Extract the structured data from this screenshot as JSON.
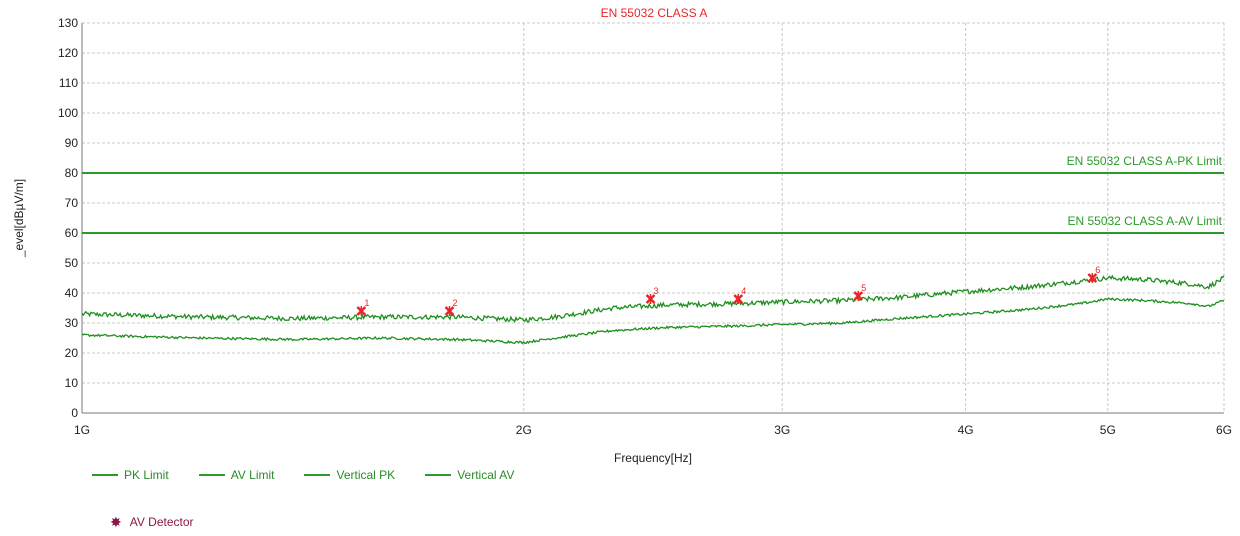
{
  "chart_data": {
    "type": "line",
    "title": "EN 55032 CLASS A",
    "xlabel": "Frequency[Hz]",
    "ylabel": "_evel[dBµV/m]",
    "x_scale": "log",
    "xlim": [
      1000000000,
      6000000000
    ],
    "ylim": [
      0,
      130
    ],
    "x_ticks": [
      {
        "value": 1000000000,
        "label": "1G"
      },
      {
        "value": 2000000000,
        "label": "2G"
      },
      {
        "value": 3000000000,
        "label": "3G"
      },
      {
        "value": 4000000000,
        "label": "4G"
      },
      {
        "value": 5000000000,
        "label": "5G"
      },
      {
        "value": 6000000000,
        "label": "6G"
      }
    ],
    "y_ticks": [
      0,
      10,
      20,
      30,
      40,
      50,
      60,
      70,
      80,
      90,
      100,
      110,
      120,
      130
    ],
    "grid": true,
    "limits": [
      {
        "name": "PK Limit",
        "value": 80,
        "label": "EN 55032 CLASS A-PK Limit",
        "color": "#2a9a2a"
      },
      {
        "name": "AV Limit",
        "value": 60,
        "label": "EN 55032 CLASS A-AV Limit",
        "color": "#2a9a2a"
      }
    ],
    "series": [
      {
        "name": "Vertical PK",
        "color": "#1f8f1f",
        "x": [
          1000000000,
          1200000000,
          1400000000,
          1600000000,
          1800000000,
          2000000000,
          2100000000,
          2300000000,
          2500000000,
          2800000000,
          3000000000,
          3300000000,
          3600000000,
          4000000000,
          4400000000,
          4800000000,
          5000000000,
          5300000000,
          5700000000,
          5850000000,
          6000000000
        ],
        "y": [
          33,
          32,
          31.5,
          32,
          32,
          31,
          32,
          35,
          36,
          36.5,
          37,
          37.5,
          38.5,
          40.5,
          42,
          44,
          45,
          44.5,
          43,
          42,
          45
        ]
      },
      {
        "name": "Vertical AV",
        "color": "#1f8f1f",
        "x": [
          1000000000,
          1200000000,
          1400000000,
          1600000000,
          1800000000,
          2000000000,
          2100000000,
          2300000000,
          2500000000,
          2800000000,
          3000000000,
          3300000000,
          3600000000,
          4000000000,
          4400000000,
          4800000000,
          5000000000,
          5300000000,
          5700000000,
          5850000000,
          6000000000
        ],
        "y": [
          26,
          25,
          24.5,
          25,
          24.5,
          23.5,
          25,
          27.5,
          28.5,
          29,
          29.5,
          30,
          31.5,
          33,
          34.5,
          36.5,
          38,
          37.5,
          36.5,
          35.5,
          37.5
        ]
      }
    ],
    "markers": [
      {
        "label": "1",
        "x": 1550000000,
        "y": 34
      },
      {
        "label": "2",
        "x": 1780000000,
        "y": 34
      },
      {
        "label": "3",
        "x": 2440000000,
        "y": 38
      },
      {
        "label": "4",
        "x": 2800000000,
        "y": 38
      },
      {
        "label": "5",
        "x": 3380000000,
        "y": 39
      },
      {
        "label": "6",
        "x": 4880000000,
        "y": 45
      }
    ]
  },
  "legend": {
    "items": [
      "PK Limit",
      "AV Limit",
      "Vertical PK",
      "Vertical AV"
    ],
    "detector_label": "AV Detector",
    "detector_icon": "asterisk-icon"
  }
}
